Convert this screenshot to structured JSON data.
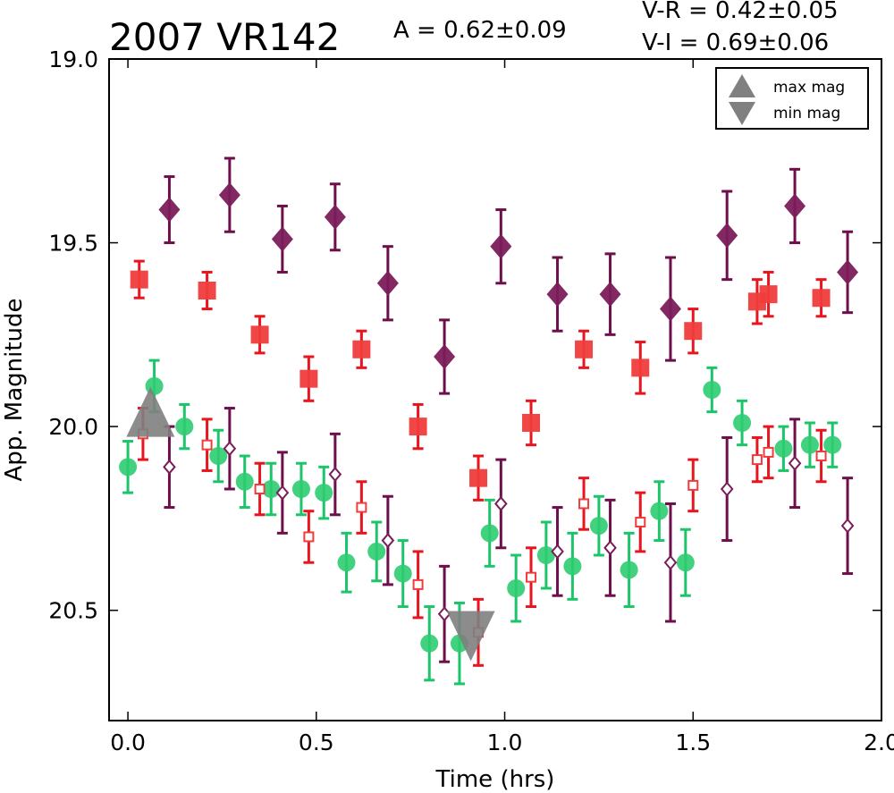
{
  "chart_data": {
    "type": "scatter",
    "title": "2007 VR142",
    "annotations": {
      "amplitude": "A  = 0.62±0.09",
      "vr": "V-R = 0.42±0.05",
      "vi": "V-I  = 0.69±0.06"
    },
    "xlabel": "Time (hrs)",
    "ylabel": "App. Magnitude",
    "xlim": [
      -0.05,
      2.0
    ],
    "ylim": [
      20.8,
      19.0
    ],
    "y_inverted": true,
    "xticks": [
      0.0,
      0.5,
      1.0,
      1.5,
      2.0
    ],
    "xtick_labels": [
      "0.0",
      "0.5",
      "1.0",
      "1.5",
      "2.0"
    ],
    "yticks": [
      19.0,
      19.5,
      20.0,
      20.5
    ],
    "ytick_labels": [
      "19.0",
      "19.5",
      "20.0",
      "20.5"
    ],
    "grid": false,
    "legend": {
      "placement": "top-right",
      "entries": [
        {
          "label": "max mag",
          "marker": "triangle-up",
          "color": "#808080"
        },
        {
          "label": "min mag",
          "marker": "triangle-down",
          "color": "#808080"
        }
      ]
    },
    "series": [
      {
        "marker": "diamond",
        "filled": true,
        "color": "#7b1c5a",
        "errcolor": "#6e0e4a",
        "points": [
          {
            "x": 0.11,
            "y": 19.41,
            "err": 0.09
          },
          {
            "x": 0.27,
            "y": 19.37,
            "err": 0.1
          },
          {
            "x": 0.41,
            "y": 19.49,
            "err": 0.09
          },
          {
            "x": 0.55,
            "y": 19.43,
            "err": 0.09
          },
          {
            "x": 0.69,
            "y": 19.61,
            "err": 0.1
          },
          {
            "x": 0.84,
            "y": 19.81,
            "err": 0.1
          },
          {
            "x": 0.99,
            "y": 19.51,
            "err": 0.1
          },
          {
            "x": 1.14,
            "y": 19.64,
            "err": 0.1
          },
          {
            "x": 1.28,
            "y": 19.64,
            "err": 0.11
          },
          {
            "x": 1.44,
            "y": 19.68,
            "err": 0.14
          },
          {
            "x": 1.59,
            "y": 19.48,
            "err": 0.12
          },
          {
            "x": 1.77,
            "y": 19.4,
            "err": 0.1
          },
          {
            "x": 1.91,
            "y": 19.58,
            "err": 0.11
          }
        ]
      },
      {
        "marker": "square",
        "filled": true,
        "color": "#f03c3c",
        "errcolor": "#e8141e",
        "points": [
          {
            "x": 0.03,
            "y": 19.6,
            "err": 0.05
          },
          {
            "x": 0.21,
            "y": 19.63,
            "err": 0.05
          },
          {
            "x": 0.35,
            "y": 19.75,
            "err": 0.05
          },
          {
            "x": 0.48,
            "y": 19.87,
            "err": 0.06
          },
          {
            "x": 0.62,
            "y": 19.79,
            "err": 0.05
          },
          {
            "x": 0.77,
            "y": 20.0,
            "err": 0.06
          },
          {
            "x": 0.93,
            "y": 20.14,
            "err": 0.06
          },
          {
            "x": 1.07,
            "y": 19.99,
            "err": 0.06
          },
          {
            "x": 1.21,
            "y": 19.79,
            "err": 0.05
          },
          {
            "x": 1.36,
            "y": 19.84,
            "err": 0.07
          },
          {
            "x": 1.5,
            "y": 19.74,
            "err": 0.06
          },
          {
            "x": 1.67,
            "y": 19.66,
            "err": 0.06
          },
          {
            "x": 1.7,
            "y": 19.64,
            "err": 0.06
          },
          {
            "x": 1.84,
            "y": 19.65,
            "err": 0.05
          }
        ]
      },
      {
        "marker": "circle",
        "filled": true,
        "color": "#2ecc71",
        "errcolor": "#1cc46a",
        "points": [
          {
            "x": 0.0,
            "y": 20.11,
            "err": 0.07
          },
          {
            "x": 0.07,
            "y": 19.89,
            "err": 0.07
          },
          {
            "x": 0.15,
            "y": 20.0,
            "err": 0.06
          },
          {
            "x": 0.24,
            "y": 20.08,
            "err": 0.07
          },
          {
            "x": 0.31,
            "y": 20.15,
            "err": 0.07
          },
          {
            "x": 0.38,
            "y": 20.17,
            "err": 0.07
          },
          {
            "x": 0.46,
            "y": 20.17,
            "err": 0.07
          },
          {
            "x": 0.52,
            "y": 20.18,
            "err": 0.07
          },
          {
            "x": 0.58,
            "y": 20.37,
            "err": 0.08
          },
          {
            "x": 0.66,
            "y": 20.34,
            "err": 0.08
          },
          {
            "x": 0.73,
            "y": 20.4,
            "err": 0.09
          },
          {
            "x": 0.8,
            "y": 20.59,
            "err": 0.1
          },
          {
            "x": 0.88,
            "y": 20.59,
            "err": 0.11
          },
          {
            "x": 0.96,
            "y": 20.29,
            "err": 0.09
          },
          {
            "x": 1.03,
            "y": 20.44,
            "err": 0.09
          },
          {
            "x": 1.11,
            "y": 20.35,
            "err": 0.09
          },
          {
            "x": 1.18,
            "y": 20.38,
            "err": 0.09
          },
          {
            "x": 1.25,
            "y": 20.27,
            "err": 0.08
          },
          {
            "x": 1.33,
            "y": 20.39,
            "err": 0.1
          },
          {
            "x": 1.41,
            "y": 20.23,
            "err": 0.08
          },
          {
            "x": 1.48,
            "y": 20.37,
            "err": 0.09
          },
          {
            "x": 1.55,
            "y": 19.9,
            "err": 0.06
          },
          {
            "x": 1.63,
            "y": 19.99,
            "err": 0.06
          },
          {
            "x": 1.74,
            "y": 20.06,
            "err": 0.06
          },
          {
            "x": 1.81,
            "y": 20.05,
            "err": 0.06
          },
          {
            "x": 1.87,
            "y": 20.05,
            "err": 0.06
          }
        ]
      },
      {
        "marker": "square",
        "filled": false,
        "color": "#f03c3c",
        "errcolor": "#e8141e",
        "points": [
          {
            "x": 0.04,
            "y": 20.02,
            "err": 0.07
          },
          {
            "x": 0.21,
            "y": 20.05,
            "err": 0.07
          },
          {
            "x": 0.35,
            "y": 20.17,
            "err": 0.07
          },
          {
            "x": 0.48,
            "y": 20.3,
            "err": 0.07
          },
          {
            "x": 0.62,
            "y": 20.22,
            "err": 0.07
          },
          {
            "x": 0.77,
            "y": 20.43,
            "err": 0.09
          },
          {
            "x": 0.93,
            "y": 20.56,
            "err": 0.09
          },
          {
            "x": 1.07,
            "y": 20.41,
            "err": 0.08
          },
          {
            "x": 1.21,
            "y": 20.21,
            "err": 0.07
          },
          {
            "x": 1.36,
            "y": 20.26,
            "err": 0.08
          },
          {
            "x": 1.5,
            "y": 20.16,
            "err": 0.07
          },
          {
            "x": 1.67,
            "y": 20.09,
            "err": 0.06
          },
          {
            "x": 1.7,
            "y": 20.07,
            "err": 0.07
          },
          {
            "x": 1.84,
            "y": 20.08,
            "err": 0.07
          }
        ]
      },
      {
        "marker": "diamond",
        "filled": false,
        "color": "#7b1c5a",
        "errcolor": "#6e0e4a",
        "points": [
          {
            "x": 0.11,
            "y": 20.11,
            "err": 0.11
          },
          {
            "x": 0.27,
            "y": 20.06,
            "err": 0.11
          },
          {
            "x": 0.41,
            "y": 20.18,
            "err": 0.11
          },
          {
            "x": 0.55,
            "y": 20.13,
            "err": 0.11
          },
          {
            "x": 0.69,
            "y": 20.31,
            "err": 0.12
          },
          {
            "x": 0.84,
            "y": 20.51,
            "err": 0.13
          },
          {
            "x": 0.99,
            "y": 20.21,
            "err": 0.12
          },
          {
            "x": 1.14,
            "y": 20.34,
            "err": 0.12
          },
          {
            "x": 1.28,
            "y": 20.33,
            "err": 0.13
          },
          {
            "x": 1.44,
            "y": 20.37,
            "err": 0.16
          },
          {
            "x": 1.59,
            "y": 20.17,
            "err": 0.14
          },
          {
            "x": 1.77,
            "y": 20.1,
            "err": 0.12
          },
          {
            "x": 1.91,
            "y": 20.27,
            "err": 0.13
          }
        ]
      }
    ],
    "extrema": [
      {
        "kind": "max",
        "x": 0.06,
        "y": 19.96,
        "color": "#808080"
      },
      {
        "kind": "min",
        "x": 0.91,
        "y": 20.57,
        "color": "#808080"
      }
    ]
  }
}
